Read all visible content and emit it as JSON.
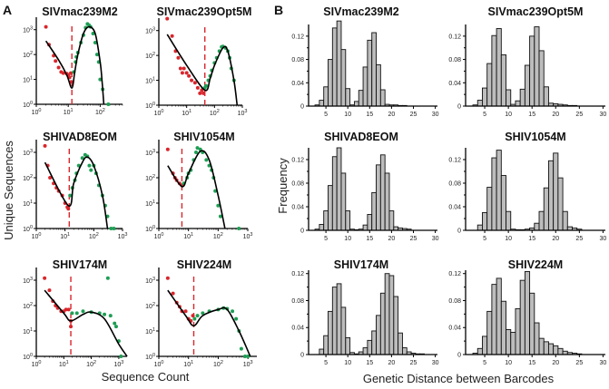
{
  "figure": {
    "panel_a_letter": "A",
    "panel_b_letter": "B",
    "a_ylabel": "Unique Sequences",
    "a_xlabel": "Sequence Count",
    "b_ylabel": "Frequency",
    "b_xlabel": "Genetic Distance between Barcodes"
  },
  "colors": {
    "below_cutoff": "#d9262c",
    "above_cutoff": "#1e9e55",
    "fit": "#000000",
    "cutoff": "#d9262c",
    "bar": "#bdbdbd"
  },
  "chart_data": [
    {
      "type": "scatter",
      "panel": "A",
      "title": "SIVmac239M2",
      "xscale": "log",
      "yscale": "log",
      "xlim_log10": [
        0,
        2.7
      ],
      "ylim_log10": [
        0,
        3.5
      ],
      "xtick_exp": [
        0,
        1,
        2
      ],
      "ytick_exp": [
        0,
        1,
        2,
        3
      ],
      "cutoff": 13,
      "red": [
        [
          2,
          1300
        ],
        [
          2.5,
          250
        ],
        [
          3.5,
          90
        ],
        [
          4,
          55
        ],
        [
          5,
          30
        ],
        [
          6,
          20
        ],
        [
          7,
          18
        ],
        [
          9,
          17
        ],
        [
          10,
          15
        ],
        [
          11,
          12
        ],
        [
          12,
          18
        ],
        [
          12.5,
          8
        ]
      ],
      "green": [
        [
          15,
          20
        ],
        [
          17,
          50
        ],
        [
          18,
          80
        ],
        [
          20,
          120
        ],
        [
          25,
          300
        ],
        [
          30,
          600
        ],
        [
          35,
          1200
        ],
        [
          40,
          1700
        ],
        [
          45,
          1500
        ],
        [
          50,
          1300
        ],
        [
          60,
          700
        ],
        [
          70,
          300
        ],
        [
          80,
          100
        ],
        [
          90,
          50
        ],
        [
          100,
          10
        ],
        [
          120,
          4
        ],
        [
          180,
          1
        ]
      ],
      "fit": [
        [
          2,
          350
        ],
        [
          5,
          60
        ],
        [
          9,
          15
        ],
        [
          13,
          4.5
        ],
        [
          16,
          20
        ],
        [
          20,
          100
        ],
        [
          30,
          700
        ],
        [
          45,
          1300
        ],
        [
          70,
          700
        ],
        [
          100,
          50
        ],
        [
          115,
          8
        ],
        [
          130,
          1
        ]
      ]
    },
    {
      "type": "scatter",
      "panel": "A",
      "title": "SIVmac239Opt5M",
      "xscale": "log",
      "yscale": "log",
      "xlim_log10": [
        0,
        3
      ],
      "ylim_log10": [
        0,
        3.5
      ],
      "xtick_exp": [
        0,
        1,
        2,
        3
      ],
      "ytick_exp": [
        0,
        1,
        2,
        3
      ],
      "cutoff": 45,
      "red": [
        [
          2,
          3000
        ],
        [
          3,
          600
        ],
        [
          4,
          150
        ],
        [
          5,
          80
        ],
        [
          6,
          30
        ],
        [
          7,
          20
        ],
        [
          8,
          30
        ],
        [
          10,
          20
        ],
        [
          12,
          15
        ],
        [
          15,
          10
        ],
        [
          20,
          8
        ],
        [
          25,
          5
        ],
        [
          30,
          3
        ],
        [
          35,
          4
        ],
        [
          40,
          3
        ]
      ],
      "green": [
        [
          45,
          5
        ],
        [
          50,
          6
        ],
        [
          60,
          10
        ],
        [
          70,
          15
        ],
        [
          80,
          25
        ],
        [
          100,
          50
        ],
        [
          120,
          80
        ],
        [
          150,
          150
        ],
        [
          180,
          220
        ],
        [
          200,
          230
        ],
        [
          250,
          200
        ],
        [
          300,
          150
        ],
        [
          350,
          80
        ],
        [
          400,
          30
        ],
        [
          500,
          10
        ]
      ],
      "fit": [
        [
          2,
          700
        ],
        [
          10,
          40
        ],
        [
          45,
          4
        ],
        [
          70,
          12
        ],
        [
          100,
          40
        ],
        [
          200,
          200
        ],
        [
          300,
          150
        ],
        [
          500,
          10
        ],
        [
          650,
          1
        ]
      ]
    },
    {
      "type": "scatter",
      "panel": "A",
      "title": "SHIVAD8EOM",
      "xscale": "log",
      "yscale": "log",
      "xlim_log10": [
        0,
        3
      ],
      "ylim_log10": [
        0,
        3.5
      ],
      "xtick_exp": [
        0,
        1,
        2,
        3
      ],
      "ytick_exp": [
        0,
        1,
        2,
        3
      ],
      "cutoff": 14,
      "red": [
        [
          2,
          1800
        ],
        [
          2.5,
          300
        ],
        [
          3,
          100
        ],
        [
          4,
          60
        ],
        [
          5,
          40
        ],
        [
          6,
          30
        ],
        [
          8,
          20
        ],
        [
          10,
          10
        ],
        [
          12,
          7
        ],
        [
          13,
          6
        ]
      ],
      "green": [
        [
          15,
          20
        ],
        [
          18,
          40
        ],
        [
          22,
          80
        ],
        [
          25,
          150
        ],
        [
          30,
          300
        ],
        [
          40,
          600
        ],
        [
          50,
          800
        ],
        [
          60,
          700
        ],
        [
          70,
          300
        ],
        [
          80,
          200
        ],
        [
          100,
          300
        ],
        [
          120,
          150
        ],
        [
          150,
          50
        ],
        [
          200,
          20
        ],
        [
          250,
          8
        ],
        [
          300,
          3
        ],
        [
          400,
          1
        ],
        [
          500,
          1
        ]
      ],
      "fit": [
        [
          2,
          400
        ],
        [
          13,
          8
        ],
        [
          20,
          60
        ],
        [
          40,
          400
        ],
        [
          60,
          650
        ],
        [
          100,
          300
        ],
        [
          200,
          20
        ],
        [
          300,
          1
        ]
      ]
    },
    {
      "type": "scatter",
      "panel": "A",
      "title": "SHIV1054M",
      "xscale": "log",
      "yscale": "log",
      "xlim_log10": [
        0,
        3
      ],
      "ylim_log10": [
        0,
        3.5
      ],
      "xtick_exp": [
        0,
        1,
        2,
        3
      ],
      "ytick_exp": [
        0,
        1,
        2,
        3
      ],
      "cutoff": 6,
      "red": [
        [
          2,
          1300
        ],
        [
          3,
          150
        ],
        [
          3.5,
          100
        ],
        [
          4,
          80
        ],
        [
          5,
          60
        ],
        [
          6,
          50
        ]
      ],
      "green": [
        [
          7,
          60
        ],
        [
          9,
          100
        ],
        [
          10,
          150
        ],
        [
          12,
          200
        ],
        [
          15,
          500
        ],
        [
          18,
          1000
        ],
        [
          20,
          1500
        ],
        [
          25,
          1300
        ],
        [
          30,
          1000
        ],
        [
          40,
          500
        ],
        [
          50,
          300
        ],
        [
          60,
          200
        ],
        [
          70,
          100
        ],
        [
          80,
          30
        ],
        [
          100,
          8
        ],
        [
          120,
          3
        ],
        [
          500,
          1
        ]
      ],
      "fit": [
        [
          2,
          300
        ],
        [
          6,
          45
        ],
        [
          10,
          150
        ],
        [
          25,
          1100
        ],
        [
          50,
          500
        ],
        [
          100,
          20
        ],
        [
          170,
          1
        ]
      ]
    },
    {
      "type": "scatter",
      "panel": "A",
      "title": "SHIV174M",
      "xscale": "log",
      "yscale": "log",
      "xlim_log10": [
        0,
        3.3
      ],
      "ylim_log10": [
        0,
        3.5
      ],
      "xtick_exp": [
        0,
        1,
        2,
        3
      ],
      "ytick_exp": [
        0,
        1,
        2,
        3
      ],
      "cutoff": 18,
      "red": [
        [
          2,
          1200
        ],
        [
          3,
          400
        ],
        [
          4,
          150
        ],
        [
          5,
          100
        ],
        [
          6,
          80
        ],
        [
          8,
          60
        ],
        [
          10,
          60
        ],
        [
          12,
          70
        ],
        [
          15,
          70
        ],
        [
          18,
          25
        ],
        [
          18,
          15
        ]
      ],
      "green": [
        [
          20,
          50
        ],
        [
          30,
          50
        ],
        [
          50,
          60
        ],
        [
          100,
          55
        ],
        [
          200,
          50
        ],
        [
          300,
          45
        ],
        [
          400,
          1200
        ],
        [
          500,
          40
        ],
        [
          700,
          20
        ],
        [
          800,
          15
        ],
        [
          1000,
          4
        ],
        [
          1200,
          1
        ]
      ],
      "fit": [
        [
          2,
          400
        ],
        [
          10,
          50
        ],
        [
          18,
          25
        ],
        [
          50,
          45
        ],
        [
          100,
          55
        ],
        [
          300,
          30
        ],
        [
          1000,
          3
        ],
        [
          2000,
          1
        ]
      ]
    },
    {
      "type": "scatter",
      "panel": "A",
      "title": "SHIV224M",
      "xscale": "log",
      "yscale": "log",
      "xlim_log10": [
        0,
        3.3
      ],
      "ylim_log10": [
        0,
        3.5
      ],
      "xtick_exp": [
        0,
        1,
        2,
        3
      ],
      "ytick_exp": [
        0,
        1,
        2,
        3
      ],
      "cutoff": 15,
      "red": [
        [
          2,
          1200
        ],
        [
          3,
          300
        ],
        [
          4,
          130
        ],
        [
          5,
          90
        ],
        [
          6,
          60
        ],
        [
          8,
          60
        ],
        [
          10,
          30
        ],
        [
          12,
          25
        ],
        [
          14,
          40
        ]
      ],
      "green": [
        [
          16,
          30
        ],
        [
          20,
          40
        ],
        [
          30,
          50
        ],
        [
          50,
          60
        ],
        [
          100,
          70
        ],
        [
          150,
          80
        ],
        [
          200,
          75
        ],
        [
          300,
          60
        ],
        [
          400,
          30
        ],
        [
          500,
          10
        ],
        [
          600,
          2
        ],
        [
          800,
          1
        ],
        [
          1000,
          1
        ]
      ],
      "fit": [
        [
          2,
          400
        ],
        [
          8,
          40
        ],
        [
          15,
          16
        ],
        [
          30,
          40
        ],
        [
          100,
          70
        ],
        [
          200,
          70
        ],
        [
          500,
          10
        ],
        [
          1200,
          1
        ]
      ]
    },
    {
      "type": "bar",
      "panel": "B",
      "title": "SIVmac239M2",
      "bin_start": 1,
      "xlim": [
        0,
        30
      ],
      "xticks": [
        5,
        10,
        15,
        20,
        25,
        30
      ],
      "ylim": [
        0,
        0.14
      ],
      "yticks": [
        "0",
        "0.04",
        "0.08",
        "0.12"
      ],
      "values": [
        0,
        0,
        0.002,
        0.01,
        0.033,
        0.08,
        0.134,
        0.146,
        0.097,
        0.03,
        0.002,
        0.008,
        0.027,
        0.067,
        0.113,
        0.126,
        0.071,
        0.028,
        0.003,
        0.002,
        0.002,
        0.001,
        0.001,
        0,
        0,
        0,
        0,
        0,
        0,
        0
      ]
    },
    {
      "type": "bar",
      "panel": "B",
      "title": "SIVmac239Opt5M",
      "bin_start": 1,
      "xlim": [
        0,
        30
      ],
      "xticks": [
        5,
        10,
        15,
        20,
        25,
        30
      ],
      "ylim": [
        0,
        0.14
      ],
      "yticks": [
        "0",
        "0.04",
        "0.08",
        "0.12"
      ],
      "values": [
        0,
        0,
        0.002,
        0.01,
        0.031,
        0.073,
        0.121,
        0.133,
        0.088,
        0.028,
        0.003,
        0.009,
        0.029,
        0.07,
        0.12,
        0.136,
        0.095,
        0.033,
        0.005,
        0.004,
        0.003,
        0.002,
        0.001,
        0.001,
        0,
        0,
        0,
        0,
        0,
        0
      ]
    },
    {
      "type": "bar",
      "panel": "B",
      "title": "SHIVAD8EOM",
      "bin_start": 1,
      "xlim": [
        0,
        30
      ],
      "xticks": [
        5,
        10,
        15,
        20,
        25,
        30
      ],
      "ylim": [
        0,
        0.14
      ],
      "yticks": [
        "0",
        "0.04",
        "0.08",
        "0.12"
      ],
      "values": [
        0,
        0,
        0.002,
        0.01,
        0.033,
        0.076,
        0.125,
        0.14,
        0.097,
        0.033,
        0.002,
        0.001,
        0.002,
        0.009,
        0.027,
        0.064,
        0.111,
        0.128,
        0.097,
        0.033,
        0.006,
        0.004,
        0.003,
        0.002,
        0,
        0,
        0,
        0,
        0,
        0
      ]
    },
    {
      "type": "bar",
      "panel": "B",
      "title": "SHIV1054M",
      "bin_start": 1,
      "xlim": [
        0,
        30
      ],
      "xticks": [
        5,
        10,
        15,
        20,
        25,
        30
      ],
      "ylim": [
        0,
        0.14
      ],
      "yticks": [
        "0",
        "0.04",
        "0.08",
        "0.12"
      ],
      "values": [
        0,
        0,
        0,
        0.009,
        0.03,
        0.073,
        0.123,
        0.136,
        0.093,
        0.032,
        0.002,
        0.001,
        0.001,
        0.002,
        0.004,
        0.012,
        0.032,
        0.072,
        0.118,
        0.131,
        0.089,
        0.032,
        0.006,
        0.004,
        0.002,
        0,
        0,
        0,
        0,
        0
      ]
    },
    {
      "type": "bar",
      "panel": "B",
      "title": "SHIV174M",
      "bin_start": 1,
      "xlim": [
        0,
        30
      ],
      "xticks": [
        5,
        10,
        15,
        20,
        25,
        30
      ],
      "ylim": [
        0,
        0.125
      ],
      "yticks": [
        "0",
        "0.04",
        "0.08",
        "0.12"
      ],
      "values": [
        0,
        0,
        0,
        0.008,
        0.028,
        0.064,
        0.1,
        0.105,
        0.07,
        0.025,
        0.003,
        0.001,
        0.004,
        0.01,
        0.021,
        0.035,
        0.058,
        0.091,
        0.12,
        0.117,
        0.086,
        0.032,
        0.01,
        0.004,
        0.002,
        0.001,
        0.001,
        0,
        0,
        0
      ]
    },
    {
      "type": "bar",
      "panel": "B",
      "title": "SHIV224M",
      "bin_start": 1,
      "xlim": [
        0,
        30
      ],
      "xticks": [
        5,
        10,
        15,
        20,
        25,
        30
      ],
      "ylim": [
        0,
        0.125
      ],
      "yticks": [
        "0",
        "0.04",
        "0.08",
        "0.12"
      ],
      "values": [
        0,
        0,
        0.002,
        0.009,
        0.027,
        0.064,
        0.104,
        0.113,
        0.079,
        0.037,
        0.033,
        0.068,
        0.11,
        0.123,
        0.091,
        0.047,
        0.024,
        0.019,
        0.016,
        0.013,
        0.009,
        0.005,
        0.003,
        0.002,
        0.001,
        0,
        0,
        0,
        0,
        0
      ]
    }
  ]
}
